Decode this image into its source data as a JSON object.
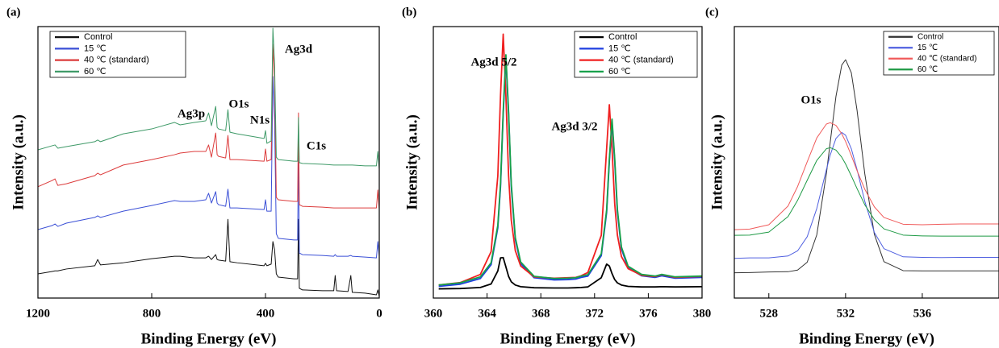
{
  "chart_data": [
    {
      "type": "line",
      "label": "(a)",
      "xlabel": "Binding Energy (eV)",
      "ylabel": "Intensity (a.u.)",
      "xlim": [
        1200,
        0
      ],
      "xticks": [
        1200,
        800,
        400,
        0
      ],
      "ylim": [
        0,
        100
      ],
      "legend": "upper left",
      "annotations": [
        "Ag3p",
        "O1s",
        "N1s",
        "Ag3d",
        "C1s"
      ],
      "x": [
        1200,
        1150,
        1140,
        1130,
        1100,
        1000,
        990,
        980,
        900,
        800,
        720,
        700,
        650,
        610,
        600,
        590,
        575,
        570,
        565,
        540,
        532,
        525,
        500,
        405,
        400,
        395,
        380,
        374,
        368,
        362,
        355,
        300,
        287,
        284,
        281,
        270,
        200,
        160,
        155,
        150,
        110,
        100,
        95,
        50,
        10,
        5,
        0
      ],
      "series": [
        {
          "name": "Control",
          "color": "#111111",
          "values": [
            8.9,
            9.8,
            10,
            10,
            10.7,
            11.9,
            14.2,
            12.2,
            13,
            14.5,
            15.4,
            15.4,
            14.8,
            14.8,
            15.4,
            14.2,
            16,
            14.2,
            14,
            13.6,
            29,
            13.4,
            13,
            11.9,
            12.8,
            11.9,
            12.5,
            20.8,
            17.8,
            8.9,
            7.7,
            7.1,
            7.1,
            29,
            3.6,
            3,
            2.7,
            2.7,
            8.3,
            2.7,
            2.4,
            8.3,
            2.1,
            1.8,
            1.2,
            3,
            0.6
          ]
        },
        {
          "name": "15 ℃",
          "color": "#3a4fd6",
          "values": [
            25.2,
            26.7,
            27.3,
            26.4,
            27.6,
            29.7,
            30.3,
            29.7,
            32,
            34.1,
            35.9,
            35.6,
            35.6,
            36.2,
            38.6,
            35,
            39.2,
            35,
            34.4,
            33.8,
            40.1,
            33.2,
            33.2,
            32.6,
            36.2,
            32,
            32,
            81.6,
            65.3,
            23.7,
            22,
            21.4,
            21.4,
            56.4,
            16.6,
            16,
            15.7,
            15.4,
            16,
            15.4,
            15.4,
            15.7,
            15.4,
            15.1,
            14.8,
            20.8,
            15.4
          ]
        },
        {
          "name": "40 ℃ (standard)",
          "color": "#dc3b3b",
          "values": [
            41,
            43.3,
            43.9,
            41.5,
            42.1,
            45.1,
            46,
            45.4,
            49,
            51,
            52.8,
            53.4,
            54,
            54,
            56.4,
            51.9,
            60.8,
            52.8,
            52.2,
            51.6,
            59.9,
            51,
            51,
            50.4,
            54.9,
            50.4,
            51,
            93.5,
            80.1,
            37.1,
            36.2,
            35.6,
            35.6,
            68.2,
            34.4,
            33.8,
            33.5,
            33.2,
            33.2,
            33.2,
            33.2,
            33.2,
            33.2,
            33.2,
            33.2,
            39.8,
            32.6
          ]
        },
        {
          "name": "60 ℃",
          "color": "#3f9a68",
          "values": [
            54.6,
            56.1,
            56.4,
            55.2,
            55.8,
            57.6,
            58.2,
            57.6,
            60.5,
            62.3,
            64.7,
            63.8,
            64.7,
            65.3,
            68.2,
            63.5,
            70.6,
            62.9,
            62.3,
            61.7,
            69.4,
            61.1,
            60.5,
            58.8,
            61.7,
            57,
            57.9,
            99.4,
            86.1,
            51.9,
            51,
            50.4,
            50.4,
            66.5,
            49.9,
            49.6,
            49.3,
            49,
            49,
            49,
            49,
            49,
            49,
            48.7,
            48.7,
            54,
            47.5
          ]
        }
      ]
    },
    {
      "type": "line",
      "label": "(b)",
      "xlabel": "Binding Energy (eV)",
      "ylabel": "Intensity (a.u.)",
      "xlim": [
        360,
        380
      ],
      "xticks": [
        360,
        364,
        368,
        372,
        376,
        380
      ],
      "ylim": [
        0,
        100
      ],
      "legend": "upper right",
      "annotations": [
        "Ag3d 5/2",
        "Ag3d 3/2"
      ],
      "x": [
        360.4,
        362,
        363.5,
        364.3,
        364.8,
        365.0,
        365.2,
        365.4,
        365.6,
        365.8,
        366.1,
        366.5,
        367.5,
        369,
        370,
        370.6,
        371,
        371.5,
        372.5,
        372.9,
        373.1,
        373.3,
        373.5,
        373.7,
        374,
        374.5,
        375.5,
        376.5,
        377,
        378,
        380
      ],
      "series": [
        {
          "name": "Control",
          "color": "#000000",
          "values": [
            3.4,
            3.5,
            3.9,
            5.2,
            10,
            14.8,
            14.9,
            11.5,
            8,
            6,
            4.8,
            4.2,
            3.8,
            3.7,
            3.7,
            3.8,
            3.9,
            4.1,
            7.5,
            12.5,
            11.8,
            9,
            6.8,
            5.6,
            4.8,
            4.3,
            4.1,
            4.1,
            4.2,
            4.1,
            4.2
          ]
        },
        {
          "name": "15 ℃",
          "color": "#1f3fe0",
          "values": [
            4.3,
            5.1,
            7.2,
            12.3,
            25.9,
            41,
            67.7,
            88.4,
            67.8,
            41.1,
            21.6,
            12.7,
            7.5,
            6.7,
            6.8,
            7.0,
            7.6,
            8.1,
            15.6,
            31.6,
            50.3,
            64.7,
            50.4,
            31.7,
            18.1,
            11.1,
            8.2,
            7.6,
            8.2,
            7.3,
            7.6
          ]
        },
        {
          "name": "40 ℃ (standard)",
          "color": "#f02020",
          "values": [
            4.8,
            5.7,
            8.7,
            17.1,
            45,
            74.5,
            97.2,
            74.6,
            45.2,
            28.7,
            17.5,
            11.8,
            7.8,
            7.3,
            7.5,
            7.6,
            8.2,
            9.4,
            23.1,
            55.1,
            71.2,
            55.1,
            34.7,
            23.2,
            15.3,
            10.8,
            8.4,
            7.9,
            8.6,
            7.6,
            8
          ]
        },
        {
          "name": "60 ℃",
          "color": "#17a04a",
          "values": [
            4.8,
            5.6,
            7.8,
            13,
            26.8,
            42,
            68.7,
            89.6,
            68.8,
            42.1,
            22.3,
            13.3,
            8,
            7.2,
            7.3,
            7.5,
            8.1,
            8.6,
            16.3,
            32.5,
            51.3,
            65.9,
            51.4,
            32.6,
            18.8,
            11.7,
            8.7,
            8.1,
            8.7,
            7.8,
            8.1
          ]
        }
      ]
    },
    {
      "type": "line",
      "label": "(c)",
      "xlabel": "Binding Energy (eV)",
      "ylabel": "Intensity (a.u.)",
      "xlim": [
        526.2,
        540
      ],
      "xticks": [
        528,
        532,
        536
      ],
      "ylim": [
        0,
        100
      ],
      "legend": "upper right",
      "annotations": [
        "O1s"
      ],
      "x": [
        526.2,
        527,
        528,
        529,
        529.5,
        530,
        530.5,
        531,
        531.2,
        531.5,
        531.8,
        532,
        532.3,
        532.6,
        533,
        533.5,
        534,
        535,
        536,
        537,
        538,
        540
      ],
      "series": [
        {
          "name": "Control",
          "color": "#333333",
          "values": [
            9.3,
            9.4,
            9.6,
            9.7,
            10.3,
            13.2,
            23.3,
            45.8,
            57.4,
            74.3,
            85.8,
            87.8,
            83,
            69.1,
            45.9,
            23.5,
            13.4,
            10.1,
            10,
            10,
            10,
            10
          ]
        },
        {
          "name": "15 ℃",
          "color": "#5060e0",
          "values": [
            14.6,
            14.8,
            14.8,
            15.5,
            17.4,
            22.6,
            33,
            47.3,
            52.7,
            58.8,
            61,
            60,
            55,
            47.3,
            35.7,
            24.2,
            18.2,
            15.2,
            15,
            14.9,
            15,
            15
          ]
        },
        {
          "name": "40 ℃ (standard)",
          "color": "#f05a5a",
          "values": [
            25.2,
            25.4,
            27,
            33.9,
            41.1,
            50.2,
            59,
            64.1,
            64.6,
            63.6,
            60.5,
            57.7,
            52.5,
            46.9,
            40.1,
            33.6,
            29.7,
            27.2,
            27,
            27.2,
            27.3,
            27.3
          ]
        },
        {
          "name": "60 ℃",
          "color": "#1e9a45",
          "values": [
            23.1,
            23.2,
            24.3,
            30,
            36,
            43.4,
            50.7,
            55,
            55.4,
            54.5,
            51.9,
            49.4,
            45,
            40.3,
            34.4,
            28.9,
            25.5,
            23.2,
            22.9,
            22.8,
            22.8,
            22.8
          ]
        }
      ]
    }
  ]
}
